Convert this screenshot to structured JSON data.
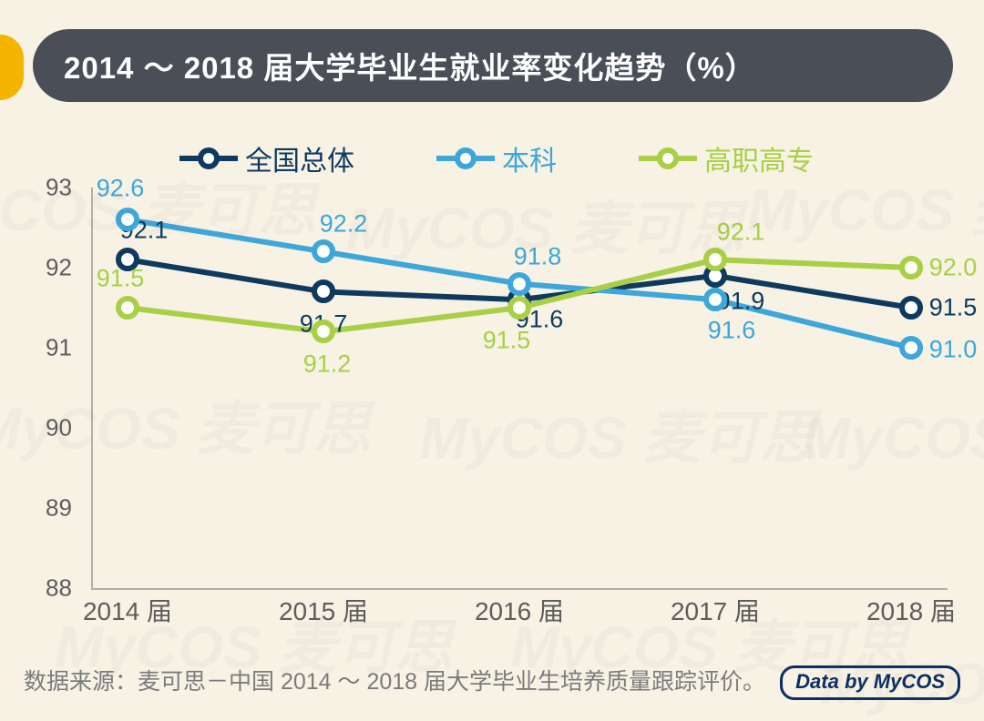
{
  "title": "2014 ～ 2018 届大学毕业生就业率变化趋势（%）",
  "source_text": "数据来源：麦可思－中国 2014 ～ 2018 届大学毕业生培养质量跟踪评价。",
  "badge_text": "Data by MyCOS",
  "background_color": "#f7f2e4",
  "title_bar_color": "#4a4e57",
  "accent_color": "#f5b400",
  "chart": {
    "type": "line",
    "categories": [
      "2014 届",
      "2015 届",
      "2016 届",
      "2017 届",
      "2018 届"
    ],
    "ylim": [
      88,
      93
    ],
    "ytick_step": 1,
    "axis_color": "rgba(90,90,90,0.45)",
    "tick_font_color": "#5d5d5d",
    "tick_fontsize": 27,
    "line_width": 6,
    "marker_size": 26,
    "marker_border": 6,
    "marker_fill": "#ffffff",
    "series": [
      {
        "name": "全国总体",
        "color": "#0e3a5f",
        "values": [
          92.1,
          91.7,
          91.6,
          91.9,
          91.5
        ],
        "label_offsets": [
          [
            18,
            -32
          ],
          [
            0,
            36
          ],
          [
            22,
            22
          ],
          [
            28,
            28
          ],
          [
            46,
            0
          ]
        ]
      },
      {
        "name": "本科",
        "color": "#3da7d9",
        "values": [
          92.6,
          92.2,
          91.8,
          91.6,
          91.0
        ],
        "label_offsets": [
          [
            -8,
            -34
          ],
          [
            22,
            -30
          ],
          [
            20,
            -30
          ],
          [
            18,
            34
          ],
          [
            46,
            2
          ]
        ]
      },
      {
        "name": "高职高专",
        "color": "#a8cf45",
        "values": [
          91.5,
          91.2,
          91.5,
          92.1,
          92.0
        ],
        "label_offsets": [
          [
            -8,
            -32
          ],
          [
            4,
            36
          ],
          [
            -14,
            36
          ],
          [
            28,
            -30
          ],
          [
            46,
            0
          ]
        ]
      }
    ]
  },
  "watermark_text": "MyCOS 麦可思"
}
